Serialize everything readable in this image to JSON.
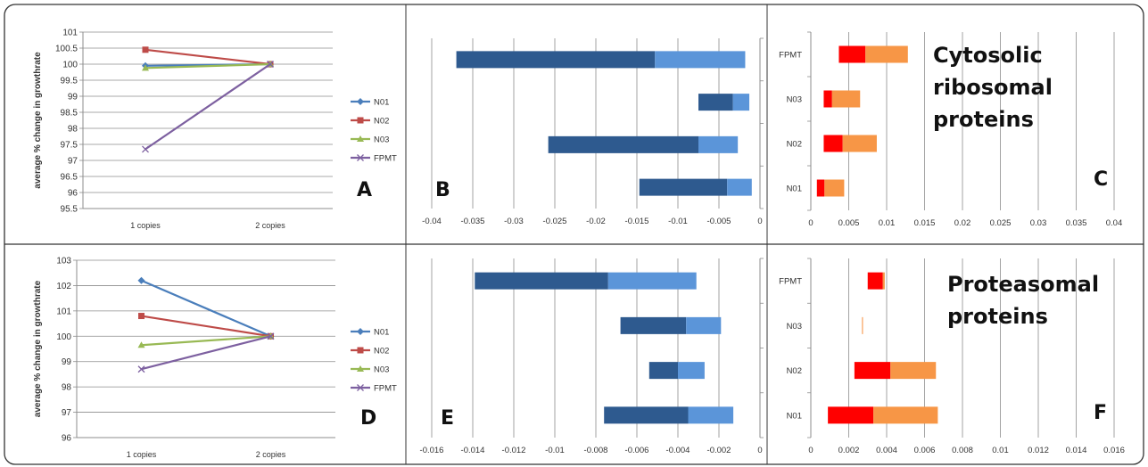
{
  "colors": {
    "N01": "#4a7ebb",
    "N02": "#be4b48",
    "N03": "#98b954",
    "FPMT": "#7d60a0",
    "dark_bar": "#2e5a8f",
    "light_bar": "#5b95d9",
    "light_red": "#f79646",
    "red": "#ff0000",
    "grid": "#8c8c8c",
    "frame": "#333333"
  },
  "chart_data": [
    {
      "panel": "A",
      "type": "line",
      "ylabel": "average % change in growthrate",
      "categories": [
        "1 copies",
        "2 copies"
      ],
      "ylim": [
        95.5,
        101
      ],
      "ytick_step": 0.5,
      "yticks": [
        "95.5",
        "96",
        "96.5",
        "97",
        "97.5",
        "98",
        "98.5",
        "99",
        "99.5",
        "100",
        "100.5",
        "101"
      ],
      "legend": "right",
      "series": [
        {
          "name": "N01",
          "values": [
            99.95,
            100.0
          ],
          "marker": "diamond"
        },
        {
          "name": "N02",
          "values": [
            100.45,
            100.0
          ],
          "marker": "square"
        },
        {
          "name": "N03",
          "values": [
            99.88,
            100.0
          ],
          "marker": "triangle"
        },
        {
          "name": "FPMT",
          "values": [
            97.35,
            100.0
          ],
          "marker": "x"
        }
      ]
    },
    {
      "panel": "B",
      "type": "bar",
      "orientation": "horizontal",
      "stacked": true,
      "xlim": [
        -0.04,
        0
      ],
      "x_step": 0.005,
      "xticks": [
        "-0.04",
        "-0.035",
        "-0.03",
        "-0.025",
        "-0.02",
        "-0.015",
        "-0.01",
        "-0.005",
        "0"
      ],
      "rows": [
        {
          "start": -0.037,
          "mid": -0.0128,
          "end": -0.0018
        },
        {
          "start": -0.0075,
          "mid": -0.0033,
          "end": -0.0013
        },
        {
          "start": -0.0258,
          "mid": -0.0075,
          "end": -0.0027
        },
        {
          "start": -0.0147,
          "mid": -0.004,
          "end": -0.001
        }
      ]
    },
    {
      "panel": "C",
      "type": "bar",
      "orientation": "horizontal",
      "stacked": true,
      "xlim": [
        0,
        0.04
      ],
      "x_step": 0.005,
      "xticks": [
        "0",
        "0.005",
        "0.01",
        "0.015",
        "0.02",
        "0.025",
        "0.03",
        "0.035",
        "0.04"
      ],
      "categories": [
        "FPMT",
        "N03",
        "N02",
        "N01"
      ],
      "rows": [
        {
          "start": 0.0037,
          "mid": 0.0072,
          "end": 0.0128
        },
        {
          "start": 0.0017,
          "mid": 0.0028,
          "end": 0.0065
        },
        {
          "start": 0.0017,
          "mid": 0.0042,
          "end": 0.0087
        },
        {
          "start": 0.0008,
          "mid": 0.0018,
          "end": 0.0044
        }
      ]
    },
    {
      "panel": "D",
      "type": "line",
      "ylabel": "average % change in growthrate",
      "categories": [
        "1 copies",
        "2 copies"
      ],
      "ylim": [
        96,
        103
      ],
      "ytick_step": 1,
      "yticks": [
        "96",
        "97",
        "98",
        "99",
        "100",
        "101",
        "102",
        "103"
      ],
      "legend": "right",
      "series": [
        {
          "name": "N01",
          "values": [
            102.2,
            100.0
          ],
          "marker": "diamond"
        },
        {
          "name": "N02",
          "values": [
            100.8,
            100.0
          ],
          "marker": "square"
        },
        {
          "name": "N03",
          "values": [
            99.65,
            100.0
          ],
          "marker": "triangle"
        },
        {
          "name": "FPMT",
          "values": [
            98.7,
            100.0
          ],
          "marker": "x"
        }
      ]
    },
    {
      "panel": "E",
      "type": "bar",
      "orientation": "horizontal",
      "stacked": true,
      "xlim": [
        -0.016,
        0
      ],
      "x_step": 0.002,
      "xticks": [
        "-0.016",
        "-0.014",
        "-0.012",
        "-0.01",
        "-0.008",
        "-0.006",
        "-0.004",
        "-0.002",
        "0"
      ],
      "rows": [
        {
          "start": -0.0139,
          "mid": -0.0074,
          "end": -0.0031
        },
        {
          "start": -0.0068,
          "mid": -0.0036,
          "end": -0.0019
        },
        {
          "start": -0.0054,
          "mid": -0.004,
          "end": -0.0027
        },
        {
          "start": -0.0076,
          "mid": -0.0035,
          "end": -0.0013
        }
      ]
    },
    {
      "panel": "F",
      "type": "bar",
      "orientation": "horizontal",
      "stacked": true,
      "xlim": [
        0,
        0.016
      ],
      "x_step": 0.002,
      "xticks": [
        "0",
        "0.002",
        "0.004",
        "0.006",
        "0.008",
        "0.01",
        "0.012",
        "0.014",
        "0.016"
      ],
      "categories": [
        "FPMT",
        "N03",
        "N02",
        "N01"
      ],
      "rows": [
        {
          "start": 0.003,
          "mid": 0.0038,
          "end": 0.0039
        },
        {
          "start": 0.0027,
          "mid": 0.0027,
          "end": 0.00275
        },
        {
          "start": 0.0023,
          "mid": 0.0042,
          "end": 0.0066
        },
        {
          "start": 0.0009,
          "mid": 0.0033,
          "end": 0.0067
        }
      ]
    }
  ],
  "annotations": {
    "panel_letters": [
      "A",
      "B",
      "C",
      "D",
      "E",
      "F"
    ],
    "cytosolic": [
      "Cytosolic",
      "ribosomal",
      "proteins"
    ],
    "proteasomal": [
      "Proteasomal",
      "proteins"
    ]
  }
}
